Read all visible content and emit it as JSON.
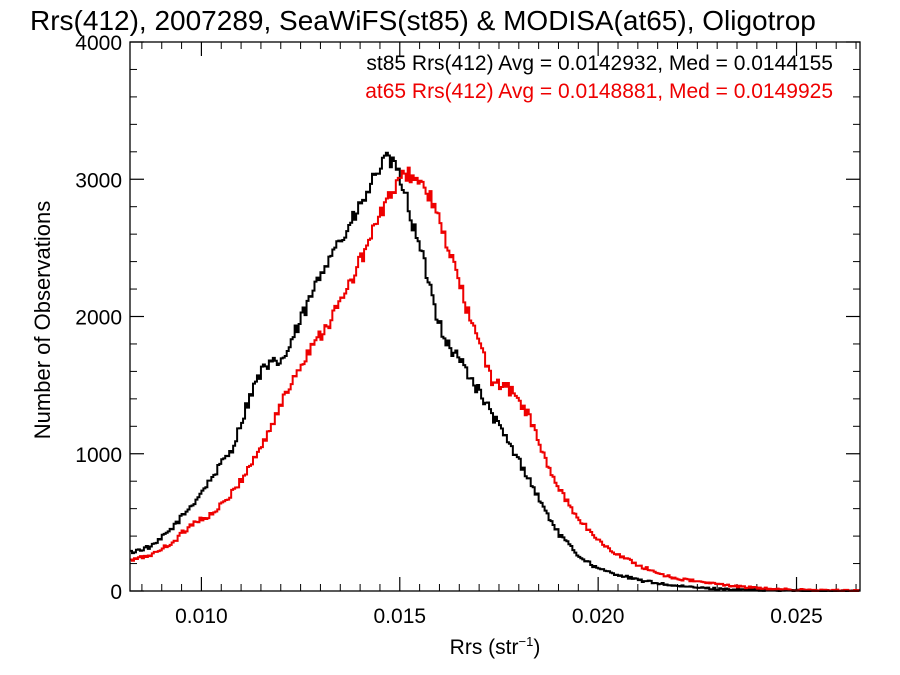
{
  "chart_data": {
    "type": "line",
    "title": "Rrs(412), 2007289, SeaWiFS(st85) & MODISA(at65), Oligotrop",
    "xlabel": "Rrs (str",
    "xlabel_sup": "−1",
    "xlabel_close": ")",
    "ylabel": "Number of Observations",
    "xlim": [
      0.0082,
      0.0266
    ],
    "ylim": [
      0,
      4000
    ],
    "xticks": [
      0.01,
      0.015,
      0.02,
      0.025
    ],
    "xtick_labels": [
      "0.010",
      "0.015",
      "0.020",
      "0.025"
    ],
    "yticks": [
      0,
      1000,
      2000,
      3000,
      4000
    ],
    "ytick_labels": [
      "0",
      "1000",
      "2000",
      "3000",
      "4000"
    ],
    "grid": false,
    "legend_placement": "top-right",
    "series": [
      {
        "name": "st85",
        "color": "#000000",
        "legend_text": "st85 Rrs(412) Avg = 0.0142932, Med = 0.0144155",
        "points": [
          [
            0.0082,
            280
          ],
          [
            0.0088,
            330
          ],
          [
            0.0093,
            470
          ],
          [
            0.0098,
            640
          ],
          [
            0.0103,
            840
          ],
          [
            0.0108,
            1050
          ],
          [
            0.0112,
            1400
          ],
          [
            0.0115,
            1600
          ],
          [
            0.0118,
            1650
          ],
          [
            0.0121,
            1700
          ],
          [
            0.0124,
            1900
          ],
          [
            0.0127,
            2100
          ],
          [
            0.013,
            2300
          ],
          [
            0.0133,
            2500
          ],
          [
            0.0136,
            2580
          ],
          [
            0.0139,
            2750
          ],
          [
            0.0142,
            2900
          ],
          [
            0.0144,
            3050
          ],
          [
            0.0146,
            3120
          ],
          [
            0.0147,
            3150
          ],
          [
            0.0149,
            3080
          ],
          [
            0.0151,
            2950
          ],
          [
            0.0153,
            2700
          ],
          [
            0.0155,
            2500
          ],
          [
            0.0157,
            2300
          ],
          [
            0.0159,
            2050
          ],
          [
            0.0162,
            1800
          ],
          [
            0.0166,
            1650
          ],
          [
            0.017,
            1450
          ],
          [
            0.0174,
            1250
          ],
          [
            0.0178,
            1050
          ],
          [
            0.0182,
            850
          ],
          [
            0.0186,
            620
          ],
          [
            0.019,
            420
          ],
          [
            0.0195,
            260
          ],
          [
            0.02,
            160
          ],
          [
            0.021,
            80
          ],
          [
            0.022,
            35
          ],
          [
            0.023,
            15
          ],
          [
            0.024,
            5
          ],
          [
            0.0266,
            0
          ]
        ]
      },
      {
        "name": "at65",
        "color": "#ee0000",
        "legend_text": "at65 Rrs(412) Avg = 0.0148881, Med = 0.0149925",
        "points": [
          [
            0.0082,
            220
          ],
          [
            0.0088,
            270
          ],
          [
            0.0093,
            360
          ],
          [
            0.0098,
            500
          ],
          [
            0.0103,
            560
          ],
          [
            0.0108,
            720
          ],
          [
            0.0112,
            900
          ],
          [
            0.0116,
            1100
          ],
          [
            0.012,
            1350
          ],
          [
            0.0124,
            1600
          ],
          [
            0.0128,
            1800
          ],
          [
            0.0132,
            1950
          ],
          [
            0.0136,
            2150
          ],
          [
            0.014,
            2400
          ],
          [
            0.0143,
            2600
          ],
          [
            0.0146,
            2800
          ],
          [
            0.0149,
            2950
          ],
          [
            0.0152,
            3050
          ],
          [
            0.0155,
            2980
          ],
          [
            0.0158,
            2850
          ],
          [
            0.0161,
            2600
          ],
          [
            0.0164,
            2350
          ],
          [
            0.0167,
            2050
          ],
          [
            0.017,
            1800
          ],
          [
            0.0173,
            1550
          ],
          [
            0.0177,
            1480
          ],
          [
            0.018,
            1400
          ],
          [
            0.0183,
            1250
          ],
          [
            0.0186,
            1000
          ],
          [
            0.019,
            750
          ],
          [
            0.0194,
            570
          ],
          [
            0.0198,
            430
          ],
          [
            0.0202,
            320
          ],
          [
            0.0206,
            250
          ],
          [
            0.021,
            190
          ],
          [
            0.0215,
            130
          ],
          [
            0.022,
            90
          ],
          [
            0.023,
            50
          ],
          [
            0.024,
            20
          ],
          [
            0.025,
            8
          ],
          [
            0.0266,
            0
          ]
        ]
      }
    ]
  }
}
